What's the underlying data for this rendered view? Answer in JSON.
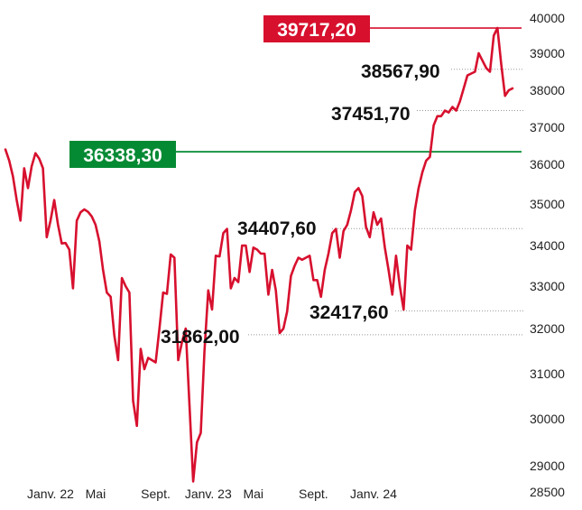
{
  "chart_data": {
    "type": "line",
    "title": "",
    "xlabel": "",
    "ylabel": "",
    "ylim": [
      28500,
      40000
    ],
    "y_ticks": [
      40000,
      39000,
      38000,
      37000,
      36000,
      35000,
      34000,
      33000,
      32000,
      31000,
      30000,
      29000,
      28500
    ],
    "y_tick_labels": [
      "40000",
      "39000",
      "38000",
      "37000",
      "36000",
      "35000",
      "34000",
      "33000",
      "32000",
      "31000",
      "30000",
      "29000",
      "28500"
    ],
    "x_ticks": [
      {
        "label": "Janv. 22",
        "index": 12
      },
      {
        "label": "Mai",
        "index": 24
      },
      {
        "label": "Sept.",
        "index": 40
      },
      {
        "label": "Janv. 23",
        "index": 54
      },
      {
        "label": "Mai",
        "index": 66
      },
      {
        "label": "Sept.",
        "index": 82
      },
      {
        "label": "Janv. 24",
        "index": 98
      }
    ],
    "line_color": "#d7102e",
    "values": [
      36400,
      36100,
      35700,
      35100,
      34600,
      35900,
      35400,
      35950,
      36300,
      36150,
      35900,
      34200,
      34600,
      35100,
      34500,
      34050,
      34060,
      33900,
      32950,
      34600,
      34800,
      34870,
      34810,
      34700,
      34500,
      34100,
      33400,
      32850,
      32750,
      31850,
      31300,
      33200,
      33000,
      32850,
      30400,
      29850,
      31550,
      31100,
      31350,
      31300,
      31250,
      32000,
      32850,
      32820,
      33780,
      33700,
      31300,
      31700,
      32000,
      30300,
      28700,
      29500,
      29700,
      31500,
      32900,
      32450,
      33750,
      33730,
      34300,
      34400,
      32950,
      33200,
      33100,
      34000,
      34000,
      33350,
      33950,
      33900,
      33800,
      33800,
      32800,
      33400,
      32900,
      31900,
      32000,
      32400,
      33250,
      33500,
      33700,
      33650,
      33700,
      33750,
      33150,
      33150,
      32750,
      33400,
      33800,
      34300,
      34400,
      33700,
      34350,
      34500,
      34850,
      35300,
      35400,
      35200,
      34450,
      34200,
      34800,
      34500,
      34650,
      33950,
      33400,
      32800,
      33750,
      33000,
      32450,
      34000,
      33900,
      34850,
      35400,
      35800,
      36100,
      36200,
      37050,
      37300,
      37300,
      37450,
      37400,
      37550,
      37450,
      37700,
      38050,
      38400,
      38450,
      38500,
      39000,
      38800,
      38600,
      38500,
      39500,
      39717,
      38700,
      37850,
      38000,
      38050
    ]
  },
  "annotations": {
    "max_label": "39717,20",
    "level_label": "36338,30",
    "recent_label": "38567,90",
    "recent_low_label": "37451,70",
    "peak23_label": "34407,60",
    "low22_label": "31862,00",
    "low23_label": "32417,60"
  },
  "colors": {
    "red": "#d7102e",
    "green": "#058a34"
  }
}
